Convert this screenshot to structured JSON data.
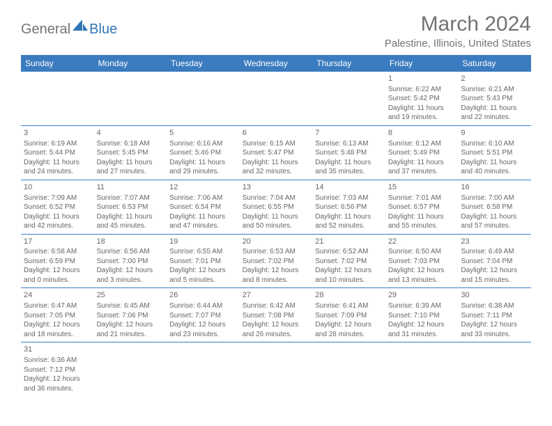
{
  "logo": {
    "part1": "General",
    "part2": "Blue"
  },
  "title": "March 2024",
  "location": "Palestine, Illinois, United States",
  "colors": {
    "header_bg": "#3b7bbf",
    "header_text": "#ffffff",
    "body_text": "#666666",
    "logo_gray": "#737373",
    "logo_blue": "#2f75b5",
    "border": "#3b7bbf"
  },
  "weekdays": [
    "Sunday",
    "Monday",
    "Tuesday",
    "Wednesday",
    "Thursday",
    "Friday",
    "Saturday"
  ],
  "weeks": [
    [
      null,
      null,
      null,
      null,
      null,
      {
        "n": "1",
        "sr": "Sunrise: 6:22 AM",
        "ss": "Sunset: 5:42 PM",
        "d1": "Daylight: 11 hours",
        "d2": "and 19 minutes."
      },
      {
        "n": "2",
        "sr": "Sunrise: 6:21 AM",
        "ss": "Sunset: 5:43 PM",
        "d1": "Daylight: 11 hours",
        "d2": "and 22 minutes."
      }
    ],
    [
      {
        "n": "3",
        "sr": "Sunrise: 6:19 AM",
        "ss": "Sunset: 5:44 PM",
        "d1": "Daylight: 11 hours",
        "d2": "and 24 minutes."
      },
      {
        "n": "4",
        "sr": "Sunrise: 6:18 AM",
        "ss": "Sunset: 5:45 PM",
        "d1": "Daylight: 11 hours",
        "d2": "and 27 minutes."
      },
      {
        "n": "5",
        "sr": "Sunrise: 6:16 AM",
        "ss": "Sunset: 5:46 PM",
        "d1": "Daylight: 11 hours",
        "d2": "and 29 minutes."
      },
      {
        "n": "6",
        "sr": "Sunrise: 6:15 AM",
        "ss": "Sunset: 5:47 PM",
        "d1": "Daylight: 11 hours",
        "d2": "and 32 minutes."
      },
      {
        "n": "7",
        "sr": "Sunrise: 6:13 AM",
        "ss": "Sunset: 5:48 PM",
        "d1": "Daylight: 11 hours",
        "d2": "and 35 minutes."
      },
      {
        "n": "8",
        "sr": "Sunrise: 6:12 AM",
        "ss": "Sunset: 5:49 PM",
        "d1": "Daylight: 11 hours",
        "d2": "and 37 minutes."
      },
      {
        "n": "9",
        "sr": "Sunrise: 6:10 AM",
        "ss": "Sunset: 5:51 PM",
        "d1": "Daylight: 11 hours",
        "d2": "and 40 minutes."
      }
    ],
    [
      {
        "n": "10",
        "sr": "Sunrise: 7:09 AM",
        "ss": "Sunset: 6:52 PM",
        "d1": "Daylight: 11 hours",
        "d2": "and 42 minutes."
      },
      {
        "n": "11",
        "sr": "Sunrise: 7:07 AM",
        "ss": "Sunset: 6:53 PM",
        "d1": "Daylight: 11 hours",
        "d2": "and 45 minutes."
      },
      {
        "n": "12",
        "sr": "Sunrise: 7:06 AM",
        "ss": "Sunset: 6:54 PM",
        "d1": "Daylight: 11 hours",
        "d2": "and 47 minutes."
      },
      {
        "n": "13",
        "sr": "Sunrise: 7:04 AM",
        "ss": "Sunset: 6:55 PM",
        "d1": "Daylight: 11 hours",
        "d2": "and 50 minutes."
      },
      {
        "n": "14",
        "sr": "Sunrise: 7:03 AM",
        "ss": "Sunset: 6:56 PM",
        "d1": "Daylight: 11 hours",
        "d2": "and 52 minutes."
      },
      {
        "n": "15",
        "sr": "Sunrise: 7:01 AM",
        "ss": "Sunset: 6:57 PM",
        "d1": "Daylight: 11 hours",
        "d2": "and 55 minutes."
      },
      {
        "n": "16",
        "sr": "Sunrise: 7:00 AM",
        "ss": "Sunset: 6:58 PM",
        "d1": "Daylight: 11 hours",
        "d2": "and 57 minutes."
      }
    ],
    [
      {
        "n": "17",
        "sr": "Sunrise: 6:58 AM",
        "ss": "Sunset: 6:59 PM",
        "d1": "Daylight: 12 hours",
        "d2": "and 0 minutes."
      },
      {
        "n": "18",
        "sr": "Sunrise: 6:56 AM",
        "ss": "Sunset: 7:00 PM",
        "d1": "Daylight: 12 hours",
        "d2": "and 3 minutes."
      },
      {
        "n": "19",
        "sr": "Sunrise: 6:55 AM",
        "ss": "Sunset: 7:01 PM",
        "d1": "Daylight: 12 hours",
        "d2": "and 5 minutes."
      },
      {
        "n": "20",
        "sr": "Sunrise: 6:53 AM",
        "ss": "Sunset: 7:02 PM",
        "d1": "Daylight: 12 hours",
        "d2": "and 8 minutes."
      },
      {
        "n": "21",
        "sr": "Sunrise: 6:52 AM",
        "ss": "Sunset: 7:02 PM",
        "d1": "Daylight: 12 hours",
        "d2": "and 10 minutes."
      },
      {
        "n": "22",
        "sr": "Sunrise: 6:50 AM",
        "ss": "Sunset: 7:03 PM",
        "d1": "Daylight: 12 hours",
        "d2": "and 13 minutes."
      },
      {
        "n": "23",
        "sr": "Sunrise: 6:49 AM",
        "ss": "Sunset: 7:04 PM",
        "d1": "Daylight: 12 hours",
        "d2": "and 15 minutes."
      }
    ],
    [
      {
        "n": "24",
        "sr": "Sunrise: 6:47 AM",
        "ss": "Sunset: 7:05 PM",
        "d1": "Daylight: 12 hours",
        "d2": "and 18 minutes."
      },
      {
        "n": "25",
        "sr": "Sunrise: 6:45 AM",
        "ss": "Sunset: 7:06 PM",
        "d1": "Daylight: 12 hours",
        "d2": "and 21 minutes."
      },
      {
        "n": "26",
        "sr": "Sunrise: 6:44 AM",
        "ss": "Sunset: 7:07 PM",
        "d1": "Daylight: 12 hours",
        "d2": "and 23 minutes."
      },
      {
        "n": "27",
        "sr": "Sunrise: 6:42 AM",
        "ss": "Sunset: 7:08 PM",
        "d1": "Daylight: 12 hours",
        "d2": "and 26 minutes."
      },
      {
        "n": "28",
        "sr": "Sunrise: 6:41 AM",
        "ss": "Sunset: 7:09 PM",
        "d1": "Daylight: 12 hours",
        "d2": "and 28 minutes."
      },
      {
        "n": "29",
        "sr": "Sunrise: 6:39 AM",
        "ss": "Sunset: 7:10 PM",
        "d1": "Daylight: 12 hours",
        "d2": "and 31 minutes."
      },
      {
        "n": "30",
        "sr": "Sunrise: 6:38 AM",
        "ss": "Sunset: 7:11 PM",
        "d1": "Daylight: 12 hours",
        "d2": "and 33 minutes."
      }
    ],
    [
      {
        "n": "31",
        "sr": "Sunrise: 6:36 AM",
        "ss": "Sunset: 7:12 PM",
        "d1": "Daylight: 12 hours",
        "d2": "and 36 minutes."
      },
      null,
      null,
      null,
      null,
      null,
      null
    ]
  ]
}
